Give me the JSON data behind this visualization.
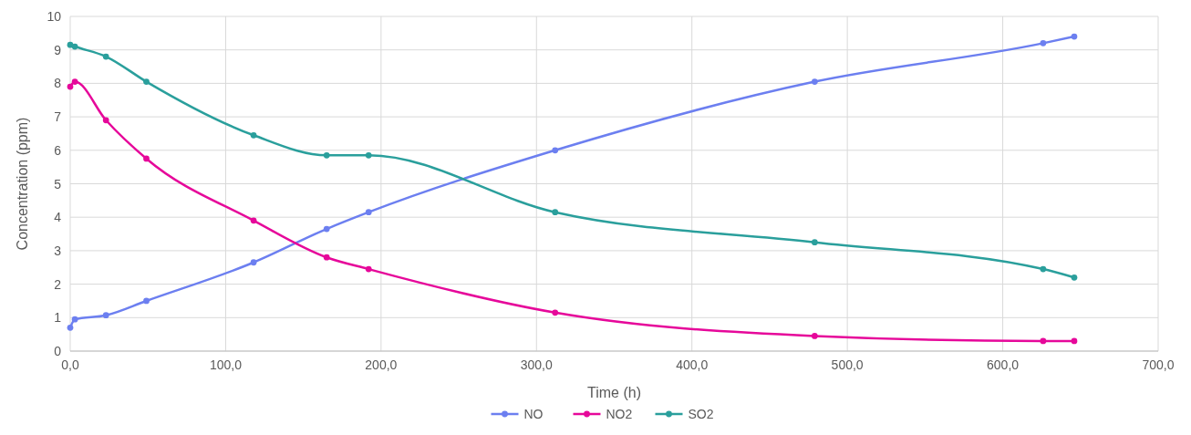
{
  "chart_data": {
    "type": "line",
    "xlabel": "Time (h)",
    "ylabel": "Concentration (ppm)",
    "x": [
      0,
      3,
      23,
      49,
      118,
      165,
      192,
      312,
      479,
      626,
      646
    ],
    "series": [
      {
        "name": "NO",
        "color": "#6c7ff0",
        "values": [
          0.7,
          0.95,
          1.07,
          1.5,
          2.65,
          3.65,
          4.15,
          6.0,
          8.05,
          9.2,
          9.4
        ]
      },
      {
        "name": "NO2",
        "color": "#e6089a",
        "values": [
          7.9,
          8.05,
          6.9,
          5.75,
          3.9,
          2.8,
          2.45,
          1.15,
          0.45,
          0.3,
          0.3
        ]
      },
      {
        "name": "SO2",
        "color": "#2a9f9c",
        "values": [
          9.15,
          9.1,
          8.8,
          8.05,
          6.45,
          5.85,
          5.85,
          4.15,
          3.25,
          2.45,
          2.2
        ]
      }
    ],
    "xlim": [
      0,
      700
    ],
    "xticks": [
      {
        "value": 0,
        "label": "0,0"
      },
      {
        "value": 100,
        "label": "100,0"
      },
      {
        "value": 200,
        "label": "200,0"
      },
      {
        "value": 300,
        "label": "300,0"
      },
      {
        "value": 400,
        "label": "400,0"
      },
      {
        "value": 500,
        "label": "500,0"
      },
      {
        "value": 600,
        "label": "600,0"
      },
      {
        "value": 700,
        "label": "700,0"
      }
    ],
    "ylim": [
      0,
      10
    ],
    "yticks": [
      0,
      1,
      2,
      3,
      4,
      5,
      6,
      7,
      8,
      9,
      10
    ],
    "grid": true,
    "legend": "bottom",
    "marker": "circle",
    "line_style": "solid"
  }
}
